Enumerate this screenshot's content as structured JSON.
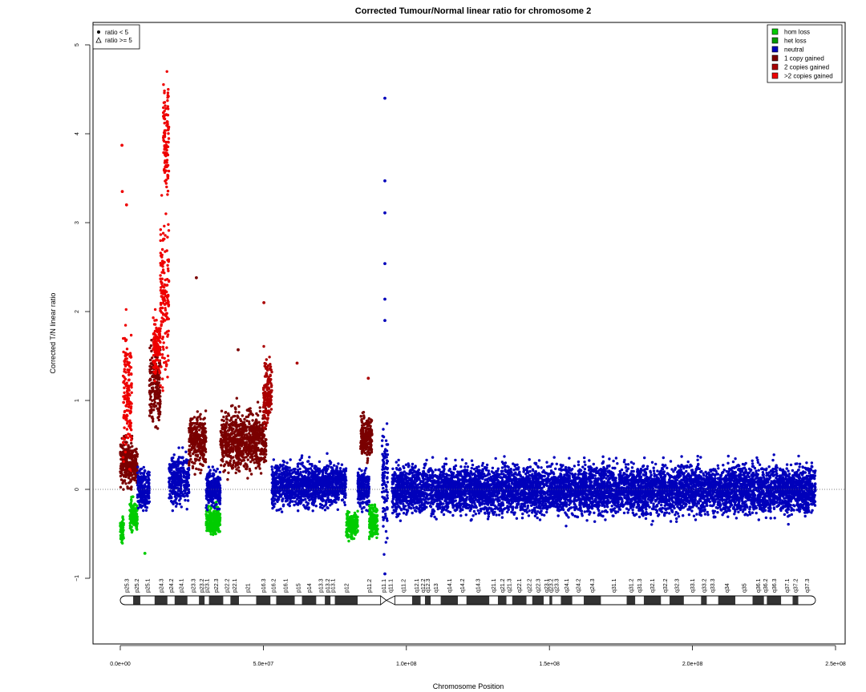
{
  "chart_data": {
    "type": "scatter",
    "title": "Corrected Tumour/Normal linear ratio for chromosome  2",
    "xlabel": "Chromosome Position",
    "ylabel": "Corrected T/N linear ratio",
    "xlim": [
      0,
      250000000
    ],
    "ylim": [
      -1.7,
      5.0
    ],
    "x_ticks": [
      {
        "value": 0,
        "label": "0.0e+00"
      },
      {
        "value": 50000000,
        "label": "5.0e+07"
      },
      {
        "value": 100000000,
        "label": "1.0e+08"
      },
      {
        "value": 150000000,
        "label": "1.5e+08"
      },
      {
        "value": 200000000,
        "label": "2.0e+08"
      },
      {
        "value": 250000000,
        "label": "2.5e+08"
      }
    ],
    "y_ticks": [
      {
        "value": -1,
        "label": "−1"
      },
      {
        "value": 0,
        "label": "0"
      },
      {
        "value": 1,
        "label": "1"
      },
      {
        "value": 2,
        "label": "2"
      },
      {
        "value": 3,
        "label": "3"
      },
      {
        "value": 4,
        "label": "4"
      },
      {
        "value": 5,
        "label": "5"
      }
    ],
    "reference_line_y": 0,
    "legend_shape": {
      "placement": "top-left",
      "entries": [
        {
          "label": "ratio < 5",
          "marker": "circle"
        },
        {
          "label": "ratio >= 5",
          "marker": "triangle"
        }
      ]
    },
    "legend_state": {
      "placement": "top-right",
      "entries": [
        {
          "label": "hom loss",
          "color": "#00cc00"
        },
        {
          "label": "het loss",
          "color": "#009900"
        },
        {
          "label": "neutral",
          "color": "#0000bb"
        },
        {
          "label": "1 copy gained",
          "color": "#7a0000"
        },
        {
          "label": "2 copies gained",
          "color": "#aa0000"
        },
        {
          "label": ">2 copies gained",
          "color": "#ee0000"
        }
      ]
    },
    "segments": [
      {
        "start": 0,
        "end": 4200000,
        "state": "1 copy gained",
        "mid": 0.3,
        "spread": 0.45
      },
      {
        "start": 1000000,
        "end": 4000000,
        "state": ">2 copies gained",
        "mid": 1.1,
        "spread": 1.2
      },
      {
        "start": 0,
        "end": 1200000,
        "state": "hom loss",
        "mid": -0.45,
        "spread": 0.25
      },
      {
        "start": 4200000,
        "end": 6000000,
        "state": "1 copy gained",
        "mid": 0.25,
        "spread": 0.3
      },
      {
        "start": 3300000,
        "end": 6000000,
        "state": "hom loss",
        "mid": -0.3,
        "spread": 0.3
      },
      {
        "start": 6000000,
        "end": 10200000,
        "state": "neutral",
        "mid": 0.0,
        "spread": 0.35
      },
      {
        "start": 10200000,
        "end": 14000000,
        "state": "1 copy gained",
        "mid": 1.2,
        "spread": 0.85
      },
      {
        "start": 11500000,
        "end": 14000000,
        "state": ">2 copies gained",
        "mid": 1.6,
        "spread": 0.5
      },
      {
        "start": 14000000,
        "end": 17000000,
        "state": ">2 copies gained",
        "mid": 2.2,
        "spread": 1.5
      },
      {
        "start": 15000000,
        "end": 17000000,
        "state": ">2 copies gained",
        "mid": 4.0,
        "spread": 1.0
      },
      {
        "start": 17000000,
        "end": 24000000,
        "state": "neutral",
        "mid": 0.1,
        "spread": 0.45
      },
      {
        "start": 24000000,
        "end": 30000000,
        "state": "1 copy gained",
        "mid": 0.55,
        "spread": 0.5
      },
      {
        "start": 30000000,
        "end": 35000000,
        "state": "hom loss",
        "mid": -0.35,
        "spread": 0.25
      },
      {
        "start": 30000000,
        "end": 35000000,
        "state": "neutral",
        "mid": 0.0,
        "spread": 0.35
      },
      {
        "start": 35000000,
        "end": 51000000,
        "state": "1 copy gained",
        "mid": 0.55,
        "spread": 0.55
      },
      {
        "start": 50000000,
        "end": 53000000,
        "state": "2 copies gained",
        "mid": 1.1,
        "spread": 0.6
      },
      {
        "start": 53000000,
        "end": 79000000,
        "state": "neutral",
        "mid": 0.05,
        "spread": 0.4
      },
      {
        "start": 79000000,
        "end": 83000000,
        "state": "hom loss",
        "mid": -0.4,
        "spread": 0.25
      },
      {
        "start": 83000000,
        "end": 87000000,
        "state": "neutral",
        "mid": 0.0,
        "spread": 0.35
      },
      {
        "start": 84000000,
        "end": 88000000,
        "state": "1 copy gained",
        "mid": 0.6,
        "spread": 0.4
      },
      {
        "start": 87000000,
        "end": 90000000,
        "state": "hom loss",
        "mid": -0.35,
        "spread": 0.3
      },
      {
        "start": 91500000,
        "end": 93500000,
        "state": "neutral",
        "mid": 0.1,
        "spread": 1.0
      },
      {
        "start": 95000000,
        "end": 243000000,
        "state": "neutral",
        "mid": 0.0,
        "spread": 0.45
      }
    ],
    "outliers": [
      {
        "x": 92500000,
        "y": 4.4,
        "state": "neutral"
      },
      {
        "x": 92500000,
        "y": 3.47,
        "state": "neutral"
      },
      {
        "x": 92500000,
        "y": 3.11,
        "state": "neutral"
      },
      {
        "x": 92500000,
        "y": 2.54,
        "state": "neutral"
      },
      {
        "x": 92500000,
        "y": 2.14,
        "state": "neutral"
      },
      {
        "x": 92500000,
        "y": 1.9,
        "state": "neutral"
      },
      {
        "x": 92500000,
        "y": -0.95,
        "state": "neutral"
      },
      {
        "x": 600000,
        "y": 3.87,
        "state": ">2 copies gained"
      },
      {
        "x": 700000,
        "y": 3.35,
        "state": ">2 copies gained"
      },
      {
        "x": 2200000,
        "y": 3.2,
        "state": ">2 copies gained"
      },
      {
        "x": 26600000,
        "y": 2.38,
        "state": "1 copy gained"
      },
      {
        "x": 50200000,
        "y": 2.1,
        "state": "2 copies gained"
      },
      {
        "x": 61800000,
        "y": 1.42,
        "state": "2 copies gained"
      },
      {
        "x": 41200000,
        "y": 1.57,
        "state": "1 copy gained"
      },
      {
        "x": 86700000,
        "y": 1.25,
        "state": "2 copies gained"
      },
      {
        "x": 8600000,
        "y": -0.72,
        "state": "hom loss"
      }
    ],
    "ideogram": {
      "centromere_position": 93000000,
      "bands": [
        {
          "label": "p25.3",
          "start": 0,
          "end": 4500000,
          "stain": "gneg"
        },
        {
          "label": "p25.2",
          "start": 4500000,
          "end": 7000000,
          "stain": "gpos"
        },
        {
          "label": "p25.1",
          "start": 7000000,
          "end": 12000000,
          "stain": "gneg"
        },
        {
          "label": "p24.3",
          "start": 12000000,
          "end": 16500000,
          "stain": "gpos"
        },
        {
          "label": "p24.2",
          "start": 16500000,
          "end": 19000000,
          "stain": "gneg"
        },
        {
          "label": "p24.1",
          "start": 19000000,
          "end": 23500000,
          "stain": "gpos"
        },
        {
          "label": "p23.3",
          "start": 23500000,
          "end": 27500000,
          "stain": "gneg"
        },
        {
          "label": "p23.2",
          "start": 27500000,
          "end": 29500000,
          "stain": "gpos"
        },
        {
          "label": "p23.1",
          "start": 29500000,
          "end": 31000000,
          "stain": "gneg"
        },
        {
          "label": "p22.3",
          "start": 31000000,
          "end": 36000000,
          "stain": "gpos"
        },
        {
          "label": "p22.2",
          "start": 36000000,
          "end": 38500000,
          "stain": "gneg"
        },
        {
          "label": "p22.1",
          "start": 38500000,
          "end": 41500000,
          "stain": "gpos"
        },
        {
          "label": "p21",
          "start": 41500000,
          "end": 47500000,
          "stain": "gneg"
        },
        {
          "label": "p16.3",
          "start": 47500000,
          "end": 52500000,
          "stain": "gpos"
        },
        {
          "label": "p16.2",
          "start": 52500000,
          "end": 54500000,
          "stain": "gneg"
        },
        {
          "label": "p16.1",
          "start": 54500000,
          "end": 61000000,
          "stain": "gpos"
        },
        {
          "label": "p15",
          "start": 61000000,
          "end": 63500000,
          "stain": "gneg"
        },
        {
          "label": "p14",
          "start": 63500000,
          "end": 68500000,
          "stain": "gpos"
        },
        {
          "label": "p13.3",
          "start": 68500000,
          "end": 71500000,
          "stain": "gneg"
        },
        {
          "label": "p13.2",
          "start": 71500000,
          "end": 73500000,
          "stain": "gpos"
        },
        {
          "label": "p13.1",
          "start": 73500000,
          "end": 75000000,
          "stain": "gneg"
        },
        {
          "label": "p12",
          "start": 75000000,
          "end": 83000000,
          "stain": "gpos"
        },
        {
          "label": "p11.2",
          "start": 83000000,
          "end": 91000000,
          "stain": "gneg"
        },
        {
          "label": "p11.1",
          "start": 91000000,
          "end": 93000000,
          "stain": "acen"
        },
        {
          "label": "q11.1",
          "start": 93000000,
          "end": 96000000,
          "stain": "acen"
        },
        {
          "label": "q11.2",
          "start": 96000000,
          "end": 102000000,
          "stain": "gneg"
        },
        {
          "label": "q12.1",
          "start": 102000000,
          "end": 105000000,
          "stain": "gpos"
        },
        {
          "label": "q12.2",
          "start": 105000000,
          "end": 106500000,
          "stain": "gneg"
        },
        {
          "label": "q12.3",
          "start": 106500000,
          "end": 108500000,
          "stain": "gpos"
        },
        {
          "label": "q13",
          "start": 108500000,
          "end": 112000000,
          "stain": "gneg"
        },
        {
          "label": "q14.1",
          "start": 112000000,
          "end": 118000000,
          "stain": "gpos"
        },
        {
          "label": "q14.2",
          "start": 118000000,
          "end": 121000000,
          "stain": "gneg"
        },
        {
          "label": "q14.3",
          "start": 121000000,
          "end": 129000000,
          "stain": "gpos"
        },
        {
          "label": "q21.1",
          "start": 129000000,
          "end": 132000000,
          "stain": "gneg"
        },
        {
          "label": "q21.2",
          "start": 132000000,
          "end": 135000000,
          "stain": "gpos"
        },
        {
          "label": "q21.3",
          "start": 135000000,
          "end": 137000000,
          "stain": "gneg"
        },
        {
          "label": "q22.1",
          "start": 137000000,
          "end": 142000000,
          "stain": "gpos"
        },
        {
          "label": "q22.2",
          "start": 142000000,
          "end": 144000000,
          "stain": "gneg"
        },
        {
          "label": "q22.3",
          "start": 144000000,
          "end": 148000000,
          "stain": "gpos"
        },
        {
          "label": "q23.1",
          "start": 148000000,
          "end": 150000000,
          "stain": "gneg"
        },
        {
          "label": "q23.2",
          "start": 150000000,
          "end": 151000000,
          "stain": "gpos"
        },
        {
          "label": "q23.3",
          "start": 151000000,
          "end": 154000000,
          "stain": "gneg"
        },
        {
          "label": "q24.1",
          "start": 154000000,
          "end": 158000000,
          "stain": "gpos"
        },
        {
          "label": "q24.2",
          "start": 158000000,
          "end": 162000000,
          "stain": "gneg"
        },
        {
          "label": "q24.3",
          "start": 162000000,
          "end": 168000000,
          "stain": "gpos"
        },
        {
          "label": "q31.1",
          "start": 168000000,
          "end": 177000000,
          "stain": "gneg"
        },
        {
          "label": "q31.2",
          "start": 177000000,
          "end": 180000000,
          "stain": "gpos"
        },
        {
          "label": "q31.3",
          "start": 180000000,
          "end": 183000000,
          "stain": "gneg"
        },
        {
          "label": "q32.1",
          "start": 183000000,
          "end": 189000000,
          "stain": "gpos"
        },
        {
          "label": "q32.2",
          "start": 189000000,
          "end": 192000000,
          "stain": "gneg"
        },
        {
          "label": "q32.3",
          "start": 192000000,
          "end": 197000000,
          "stain": "gpos"
        },
        {
          "label": "q33.1",
          "start": 197000000,
          "end": 203000000,
          "stain": "gneg"
        },
        {
          "label": "q33.2",
          "start": 203000000,
          "end": 205000000,
          "stain": "gpos"
        },
        {
          "label": "q33.3",
          "start": 205000000,
          "end": 209000000,
          "stain": "gneg"
        },
        {
          "label": "q34",
          "start": 209000000,
          "end": 215000000,
          "stain": "gpos"
        },
        {
          "label": "q35",
          "start": 215000000,
          "end": 221000000,
          "stain": "gneg"
        },
        {
          "label": "q36.1",
          "start": 221000000,
          "end": 225000000,
          "stain": "gpos"
        },
        {
          "label": "q36.2",
          "start": 225000000,
          "end": 226000000,
          "stain": "gneg"
        },
        {
          "label": "q36.3",
          "start": 226000000,
          "end": 231000000,
          "stain": "gpos"
        },
        {
          "label": "q37.1",
          "start": 231000000,
          "end": 235000000,
          "stain": "gneg"
        },
        {
          "label": "q37.2",
          "start": 235000000,
          "end": 237000000,
          "stain": "gpos"
        },
        {
          "label": "q37.3",
          "start": 237000000,
          "end": 243000000,
          "stain": "gneg"
        }
      ]
    }
  }
}
